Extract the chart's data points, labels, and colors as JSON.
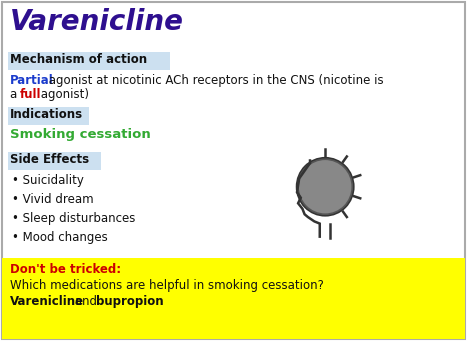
{
  "title": "Varenicline",
  "title_color": "#2e0f8f",
  "bg_color": "#ffffff",
  "section_bg": "#cce0f0",
  "moa_partial_color": "#1a3bcc",
  "moa_full_color": "#cc0000",
  "moa_text_color": "#111111",
  "indications_text": "Smoking cessation",
  "indications_color": "#33aa33",
  "side_effects": [
    "Suicidality",
    "Vivid dream",
    "Sleep disturbances",
    "Mood changes"
  ],
  "side_effects_color": "#111111",
  "dont_be_tricked_color": "#cc0000",
  "dont_be_tricked_text": "Don't be tricked:",
  "trick_q": "Which medications are helpful in smoking cessation?",
  "yellow_bg": "#ffff00",
  "border_color": "#aaaaaa"
}
